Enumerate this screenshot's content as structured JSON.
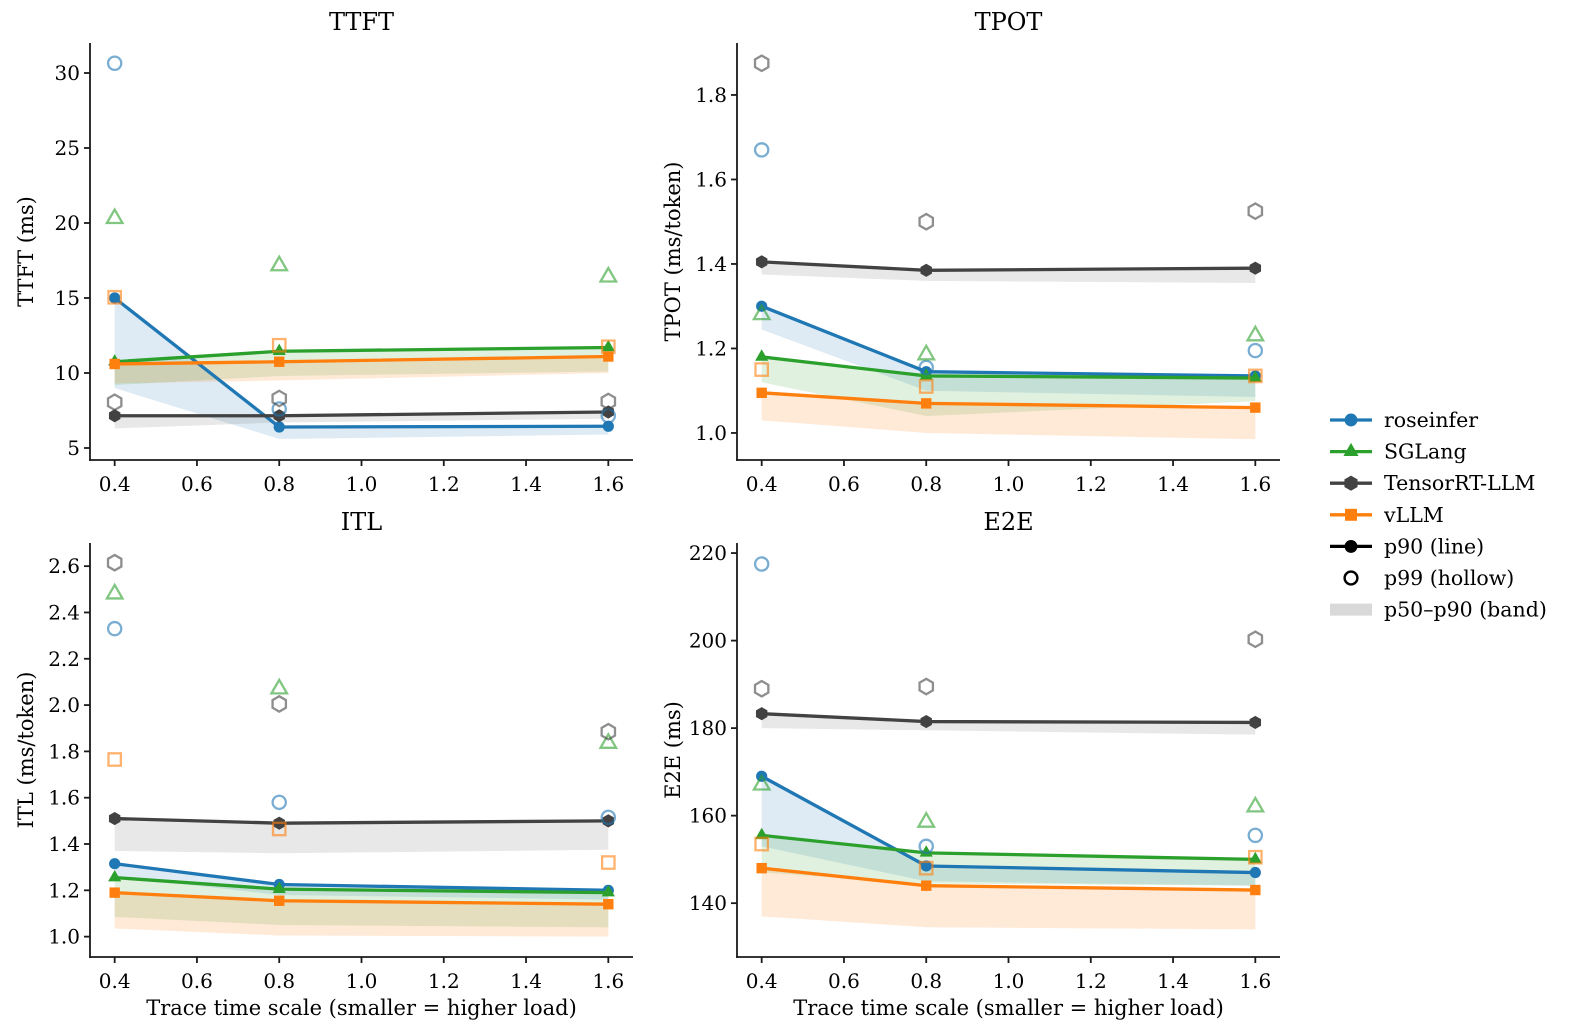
{
  "style": {
    "background": "#ffffff",
    "axis_color": "#1a1a1a",
    "series_colors": {
      "roseinfer": "#1f77b4",
      "SGLang": "#2ca02c",
      "TensorRT-LLM": "#424242",
      "vLLM": "#ff7f0e"
    },
    "p99_marker_opacity": 0.6,
    "band_opacity": {
      "roseinfer": 0.15,
      "SGLang": 0.15,
      "TensorRT-LLM": 0.12,
      "vLLM": 0.16
    },
    "legend_band_color": "#d9d9d9"
  },
  "legend": {
    "entries": [
      {
        "label": "roseinfer",
        "series": "roseinfer",
        "marker": "circle",
        "kind": "series"
      },
      {
        "label": "SGLang",
        "series": "SGLang",
        "marker": "triangle",
        "kind": "series"
      },
      {
        "label": "TensorRT-LLM",
        "series": "TensorRT-LLM",
        "marker": "hexagon",
        "kind": "series"
      },
      {
        "label": "vLLM",
        "series": "vLLM",
        "marker": "square",
        "kind": "series"
      },
      {
        "label": "p90 (line)",
        "color": "#000000",
        "marker": "circle",
        "kind": "line"
      },
      {
        "label": "p99 (hollow)",
        "color": "#000000",
        "marker": "circle",
        "kind": "hollow"
      },
      {
        "label": "p50–p90 (band)",
        "color": "#d9d9d9",
        "kind": "band"
      }
    ]
  },
  "chart_data": [
    {
      "type": "line",
      "title": "TTFT",
      "ylabel": "TTFT (ms)",
      "xlabel": "",
      "x": [
        0.4,
        0.8,
        1.6
      ],
      "xlim": [
        0.34,
        1.66
      ],
      "ylim": [
        4.2,
        32.0
      ],
      "xticks": [
        "0.4",
        "0.6",
        "0.8",
        "1.0",
        "1.2",
        "1.4",
        "1.6"
      ],
      "yticks": [
        "5",
        "10",
        "15",
        "20",
        "25",
        "30"
      ],
      "series": [
        {
          "name": "roseinfer",
          "p50": [
            9.0,
            5.6,
            5.9
          ],
          "p90": [
            15.0,
            6.4,
            6.45
          ],
          "p99": [
            30.65,
            7.6,
            7.15
          ]
        },
        {
          "name": "SGLang",
          "p50": [
            9.2,
            9.8,
            10.1
          ],
          "p90": [
            10.75,
            11.45,
            11.7
          ],
          "p99": [
            20.3,
            17.15,
            16.4
          ]
        },
        {
          "name": "TensorRT-LLM",
          "p50": [
            6.3,
            6.7,
            6.95
          ],
          "p90": [
            7.15,
            7.15,
            7.4
          ],
          "p99": [
            8.05,
            8.3,
            8.1
          ]
        },
        {
          "name": "vLLM",
          "p50": [
            9.3,
            9.5,
            10.0
          ],
          "p90": [
            10.6,
            10.75,
            11.1
          ],
          "p99": [
            15.05,
            11.85,
            11.75
          ]
        }
      ]
    },
    {
      "type": "line",
      "title": "TPOT",
      "ylabel": "TPOT (ms/token)",
      "xlabel": "",
      "x": [
        0.4,
        0.8,
        1.6
      ],
      "xlim": [
        0.34,
        1.66
      ],
      "ylim": [
        0.936,
        1.923
      ],
      "xticks": [
        "0.4",
        "0.6",
        "0.8",
        "1.0",
        "1.2",
        "1.4",
        "1.6"
      ],
      "yticks": [
        "1.0",
        "1.2",
        "1.4",
        "1.6",
        "1.8"
      ],
      "series": [
        {
          "name": "roseinfer",
          "p50": [
            1.245,
            1.1,
            1.085
          ],
          "p90": [
            1.3,
            1.145,
            1.135
          ],
          "p99": [
            1.67,
            1.155,
            1.195
          ]
        },
        {
          "name": "SGLang",
          "p50": [
            1.12,
            1.04,
            1.075
          ],
          "p90": [
            1.18,
            1.135,
            1.13
          ],
          "p99": [
            1.28,
            1.185,
            1.23
          ]
        },
        {
          "name": "TensorRT-LLM",
          "p50": [
            1.375,
            1.36,
            1.355
          ],
          "p90": [
            1.405,
            1.385,
            1.39
          ],
          "p99": [
            1.875,
            1.5,
            1.525
          ]
        },
        {
          "name": "vLLM",
          "p50": [
            1.03,
            1.0,
            0.985
          ],
          "p90": [
            1.095,
            1.07,
            1.06
          ],
          "p99": [
            1.15,
            1.11,
            1.135
          ]
        }
      ]
    },
    {
      "type": "line",
      "title": "ITL",
      "ylabel": "ITL (ms/token)",
      "xlabel": "Trace time scale (smaller = higher load)",
      "x": [
        0.4,
        0.8,
        1.6
      ],
      "xlim": [
        0.34,
        1.66
      ],
      "ylim": [
        0.912,
        2.7
      ],
      "xticks": [
        "0.4",
        "0.6",
        "0.8",
        "1.0",
        "1.2",
        "1.4",
        "1.6"
      ],
      "yticks": [
        "1.0",
        "1.2",
        "1.4",
        "1.6",
        "1.8",
        "2.0",
        "2.2",
        "2.4",
        "2.6"
      ],
      "series": [
        {
          "name": "roseinfer",
          "p50": [
            1.26,
            1.18,
            1.16
          ],
          "p90": [
            1.315,
            1.225,
            1.2
          ],
          "p99": [
            2.33,
            1.58,
            1.515
          ]
        },
        {
          "name": "SGLang",
          "p50": [
            1.085,
            1.05,
            1.04
          ],
          "p90": [
            1.255,
            1.205,
            1.19
          ],
          "p99": [
            2.48,
            2.07,
            1.835
          ]
        },
        {
          "name": "TensorRT-LLM",
          "p50": [
            1.37,
            1.36,
            1.375
          ],
          "p90": [
            1.51,
            1.49,
            1.5
          ],
          "p99": [
            2.615,
            2.005,
            1.885
          ]
        },
        {
          "name": "vLLM",
          "p50": [
            1.035,
            1.005,
            1.0
          ],
          "p90": [
            1.19,
            1.155,
            1.14
          ],
          "p99": [
            1.765,
            1.465,
            1.32
          ]
        }
      ]
    },
    {
      "type": "line",
      "title": "E2E",
      "ylabel": "E2E (ms)",
      "xlabel": "Trace time scale (smaller = higher load)",
      "x": [
        0.4,
        0.8,
        1.6
      ],
      "xlim": [
        0.34,
        1.66
      ],
      "ylim": [
        127.7,
        222.3
      ],
      "xticks": [
        "0.4",
        "0.6",
        "0.8",
        "1.0",
        "1.2",
        "1.4",
        "1.6"
      ],
      "yticks": [
        "140",
        "160",
        "180",
        "200",
        "220"
      ],
      "series": [
        {
          "name": "roseinfer",
          "p50": [
            153,
            145,
            144
          ],
          "p90": [
            169,
            148.5,
            147
          ],
          "p99": [
            217.5,
            153,
            155.5
          ]
        },
        {
          "name": "SGLang",
          "p50": [
            147,
            144.5,
            144
          ],
          "p90": [
            155.5,
            151.5,
            150
          ],
          "p99": [
            167,
            158.5,
            162
          ]
        },
        {
          "name": "TensorRT-LLM",
          "p50": [
            180,
            179.5,
            178.5
          ],
          "p90": [
            183.3,
            181.5,
            181.3
          ],
          "p99": [
            189,
            189.5,
            200.3
          ]
        },
        {
          "name": "vLLM",
          "p50": [
            137,
            134.5,
            134
          ],
          "p90": [
            148,
            144,
            143
          ],
          "p99": [
            153.5,
            148,
            150.5
          ]
        }
      ]
    }
  ]
}
